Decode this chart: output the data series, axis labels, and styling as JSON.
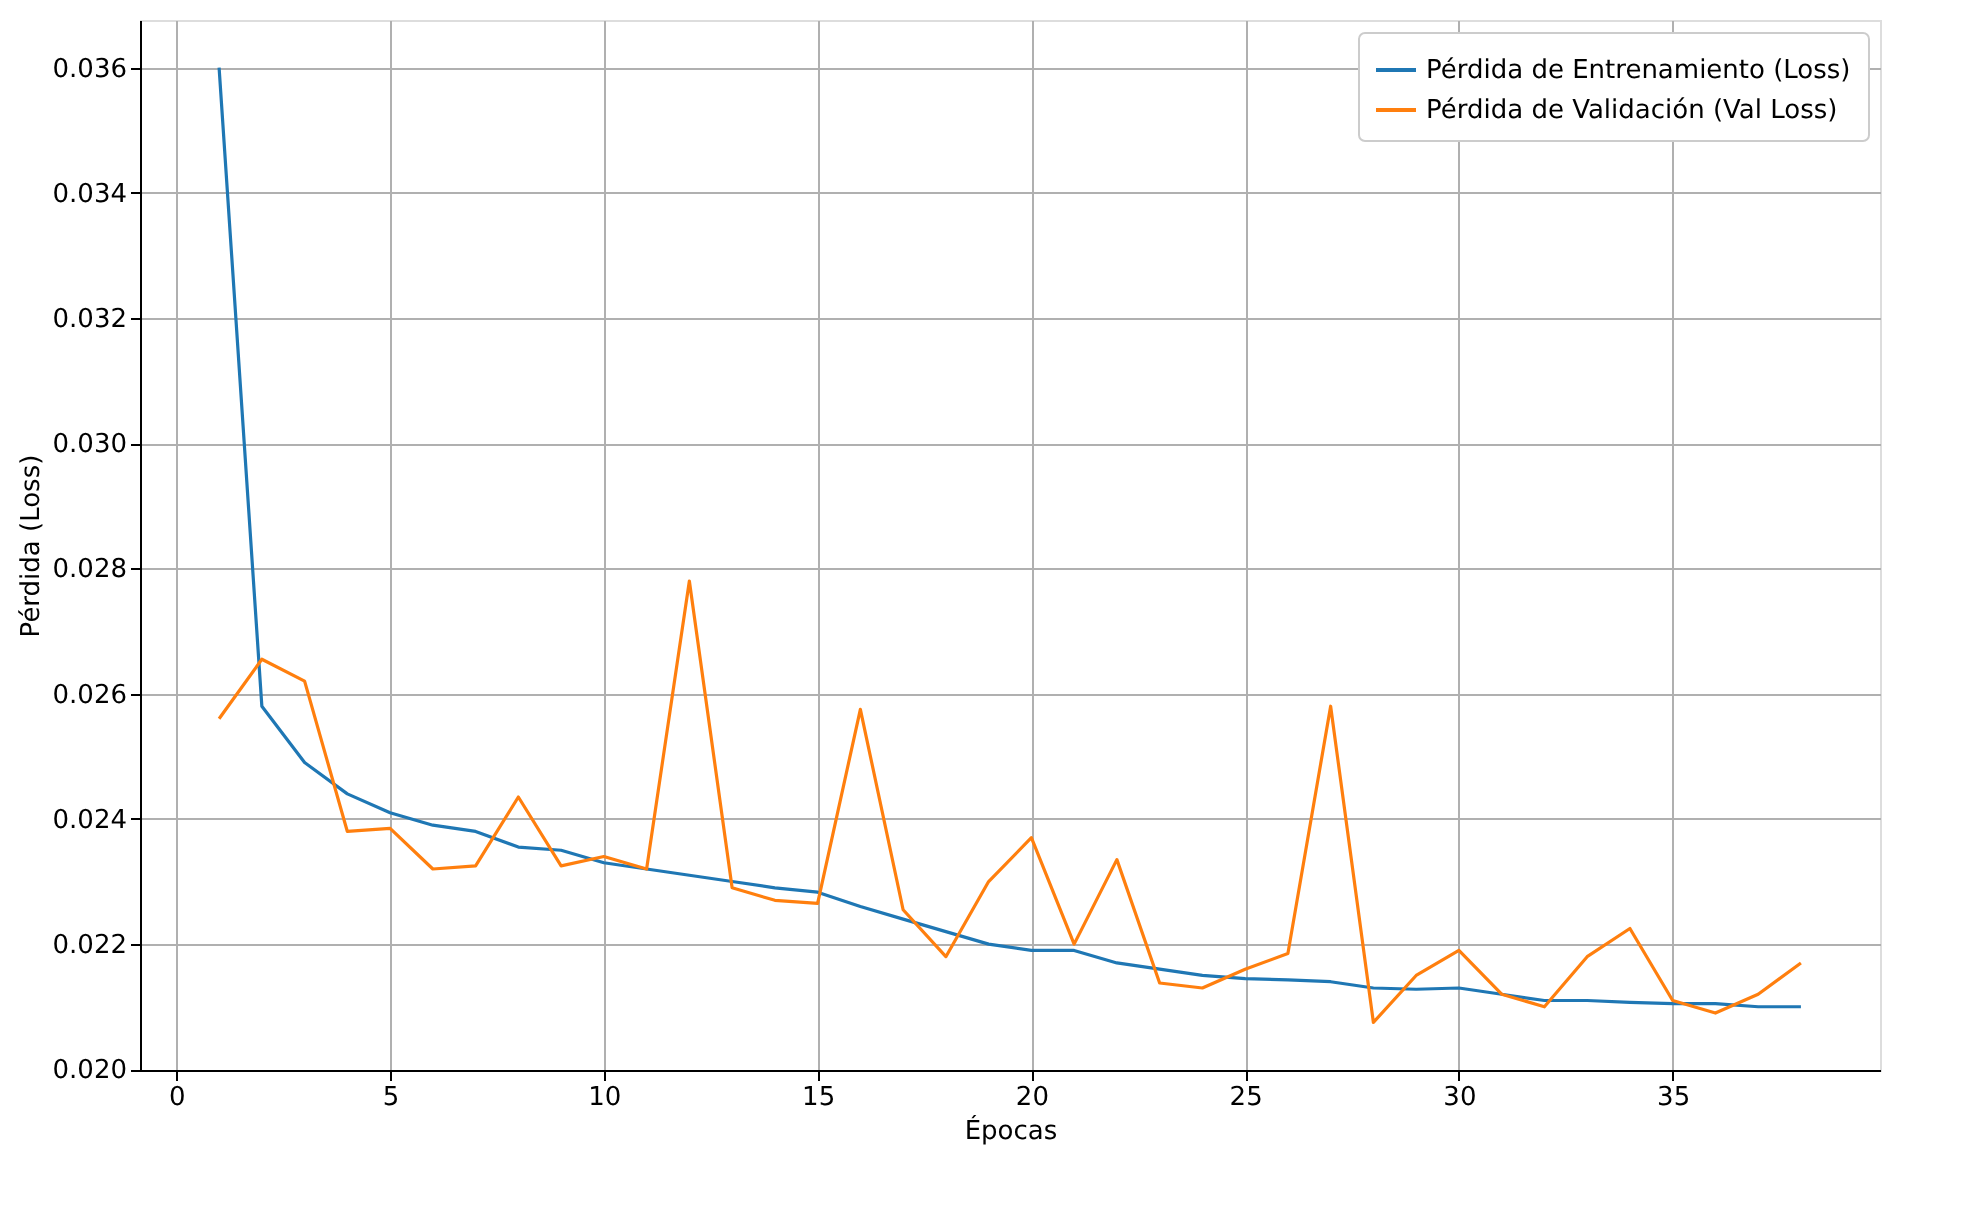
{
  "chart_data": {
    "type": "line",
    "xlabel": "Épocas",
    "ylabel": "Pérdida (Loss)",
    "x": [
      1,
      2,
      3,
      4,
      5,
      6,
      7,
      8,
      9,
      10,
      11,
      12,
      13,
      14,
      15,
      16,
      17,
      18,
      19,
      20,
      21,
      22,
      23,
      24,
      25,
      26,
      27,
      28,
      29,
      30,
      31,
      32,
      33,
      34,
      35,
      36,
      37,
      38
    ],
    "series": [
      {
        "name": "Pérdida de Entrenamiento (Loss)",
        "color": "#1f77b4",
        "values": [
          0.036,
          0.0258,
          0.0249,
          0.0244,
          0.0241,
          0.0239,
          0.0238,
          0.02355,
          0.0235,
          0.0233,
          0.0232,
          0.0231,
          0.023,
          0.0229,
          0.02283,
          0.0226,
          0.0224,
          0.0222,
          0.022,
          0.0219,
          0.0219,
          0.0217,
          0.0216,
          0.0215,
          0.02145,
          0.02143,
          0.0214,
          0.0213,
          0.02128,
          0.0213,
          0.0212,
          0.0211,
          0.0211,
          0.02107,
          0.02105,
          0.02105,
          0.021,
          0.021
        ]
      },
      {
        "name": "Pérdida de Validación (Val Loss)",
        "color": "#ff7f0e",
        "values": [
          0.0256,
          0.02655,
          0.0262,
          0.0238,
          0.02385,
          0.0232,
          0.02325,
          0.02435,
          0.02325,
          0.0234,
          0.0232,
          0.0278,
          0.0229,
          0.0227,
          0.02265,
          0.02575,
          0.02255,
          0.0218,
          0.023,
          0.0237,
          0.022,
          0.02335,
          0.02138,
          0.0213,
          0.0216,
          0.02185,
          0.0258,
          0.02075,
          0.0215,
          0.0219,
          0.0212,
          0.021,
          0.0218,
          0.02225,
          0.0211,
          0.0209,
          0.0212,
          0.0217
        ]
      }
    ],
    "xlim": [
      -0.85,
      39.85
    ],
    "xticks": [
      0,
      5,
      10,
      15,
      20,
      25,
      30,
      35
    ],
    "ylim": [
      0.01999,
      0.03676
    ],
    "yticks": [
      {
        "value": 0.02,
        "label": "0.020"
      },
      {
        "value": 0.022,
        "label": "0.022"
      },
      {
        "value": 0.024,
        "label": "0.024"
      },
      {
        "value": 0.026,
        "label": "0.026"
      },
      {
        "value": 0.028,
        "label": "0.028"
      },
      {
        "value": 0.03,
        "label": "0.030"
      },
      {
        "value": 0.032,
        "label": "0.032"
      },
      {
        "value": 0.034,
        "label": "0.034"
      },
      {
        "value": 0.036,
        "label": "0.036"
      }
    ],
    "grid": true,
    "legend": "top right",
    "marker": "none",
    "line_style": "solid"
  }
}
